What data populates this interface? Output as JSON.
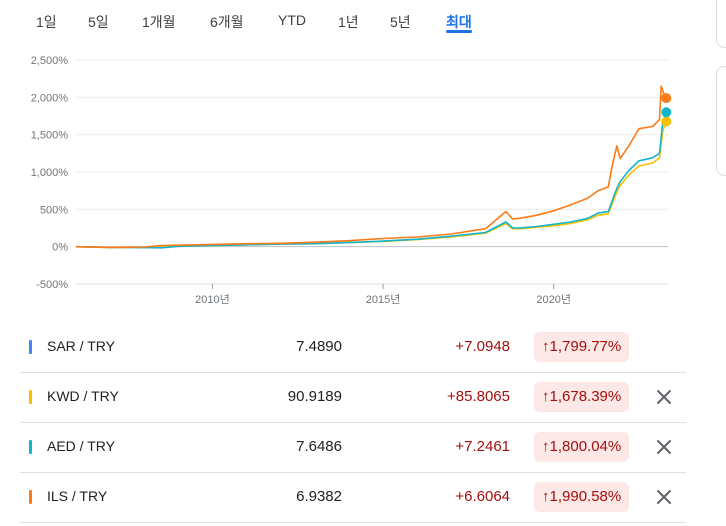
{
  "tabs": [
    {
      "label": "1일"
    },
    {
      "label": "5일"
    },
    {
      "label": "1개월"
    },
    {
      "label": "6개월"
    },
    {
      "label": "YTD"
    },
    {
      "label": "1년"
    },
    {
      "label": "5년"
    },
    {
      "label": "최대",
      "active": true
    }
  ],
  "chart_data": {
    "type": "line",
    "x_start": 2006.0,
    "x_end": 2023.35,
    "ylim": [
      -500,
      2500
    ],
    "yticks": [
      {
        "value": 2500,
        "label": "2,500%"
      },
      {
        "value": 2000,
        "label": "2,000%"
      },
      {
        "value": 1500,
        "label": "1,500%"
      },
      {
        "value": 1000,
        "label": "1,000%"
      },
      {
        "value": 500,
        "label": "500%"
      },
      {
        "value": 0,
        "label": "0%"
      },
      {
        "value": -500,
        "label": "-500%"
      }
    ],
    "xticks": [
      {
        "value": 2010,
        "label": "2010년"
      },
      {
        "value": 2015,
        "label": "2015년"
      },
      {
        "value": 2020,
        "label": "2020년"
      }
    ],
    "series": [
      {
        "name": "KWD / TRY",
        "color": "#f9c000",
        "x": [
          2006.0,
          2007.0,
          2008.0,
          2008.5,
          2009.0,
          2010.0,
          2011.0,
          2012.0,
          2013.0,
          2014.0,
          2015.0,
          2016.0,
          2017.0,
          2018.0,
          2018.6,
          2018.8,
          2019.0,
          2019.5,
          2020.0,
          2020.5,
          2021.0,
          2021.3,
          2021.6,
          2021.85,
          2021.95,
          2022.2,
          2022.5,
          2022.9,
          2023.1,
          2023.2,
          2023.3
        ],
        "y": [
          0,
          -10,
          -12,
          -8,
          5,
          15,
          25,
          35,
          40,
          55,
          70,
          95,
          130,
          180,
          310,
          240,
          240,
          260,
          280,
          310,
          360,
          420,
          440,
          730,
          820,
          960,
          1080,
          1120,
          1190,
          1560,
          1678
        ]
      },
      {
        "name": "AED / TRY",
        "color": "#12b5cb",
        "x": [
          2006.0,
          2007.0,
          2008.0,
          2008.5,
          2009.0,
          2010.0,
          2011.0,
          2012.0,
          2013.0,
          2014.0,
          2015.0,
          2016.0,
          2017.0,
          2018.0,
          2018.6,
          2018.8,
          2019.0,
          2019.5,
          2020.0,
          2020.5,
          2021.0,
          2021.3,
          2021.6,
          2021.85,
          2021.95,
          2022.2,
          2022.5,
          2022.9,
          2023.1,
          2023.2,
          2023.3
        ],
        "y": [
          0,
          -10,
          -12,
          -15,
          5,
          15,
          25,
          35,
          40,
          55,
          75,
          100,
          140,
          190,
          330,
          250,
          250,
          270,
          300,
          330,
          380,
          450,
          470,
          780,
          870,
          1020,
          1150,
          1190,
          1250,
          1680,
          1800
        ]
      },
      {
        "name": "ILS / TRY",
        "color": "#fa7b17",
        "x": [
          2006.0,
          2007.0,
          2008.0,
          2008.5,
          2009.0,
          2010.0,
          2011.0,
          2012.0,
          2013.0,
          2014.0,
          2015.0,
          2016.0,
          2017.0,
          2018.0,
          2018.6,
          2018.8,
          2019.0,
          2019.5,
          2020.0,
          2020.5,
          2021.0,
          2021.3,
          2021.6,
          2021.7,
          2021.85,
          2021.95,
          2022.2,
          2022.5,
          2022.9,
          2023.1,
          2023.15,
          2023.25,
          2023.3
        ],
        "y": [
          0,
          -10,
          -5,
          15,
          20,
          30,
          40,
          45,
          60,
          80,
          110,
          130,
          170,
          240,
          470,
          370,
          380,
          420,
          480,
          560,
          650,
          750,
          800,
          1050,
          1350,
          1180,
          1350,
          1580,
          1610,
          1700,
          2150,
          2020,
          1990
        ]
      }
    ]
  },
  "rows": [
    {
      "pair": "SAR / TRY",
      "price": "7.4890",
      "change": "+7.0948",
      "pct": "1,799.77%",
      "color": "#4285f4",
      "removable": false
    },
    {
      "pair": "KWD / TRY",
      "price": "90.9189",
      "change": "+85.8065",
      "pct": "1,678.39%",
      "color": "#f9c000",
      "removable": true
    },
    {
      "pair": "AED / TRY",
      "price": "7.6486",
      "change": "+7.2461",
      "pct": "1,800.04%",
      "color": "#12b5cb",
      "removable": true
    },
    {
      "pair": "ILS / TRY",
      "price": "6.9382",
      "change": "+6.6064",
      "pct": "1,990.58%",
      "color": "#fa7b17",
      "removable": true
    }
  ]
}
